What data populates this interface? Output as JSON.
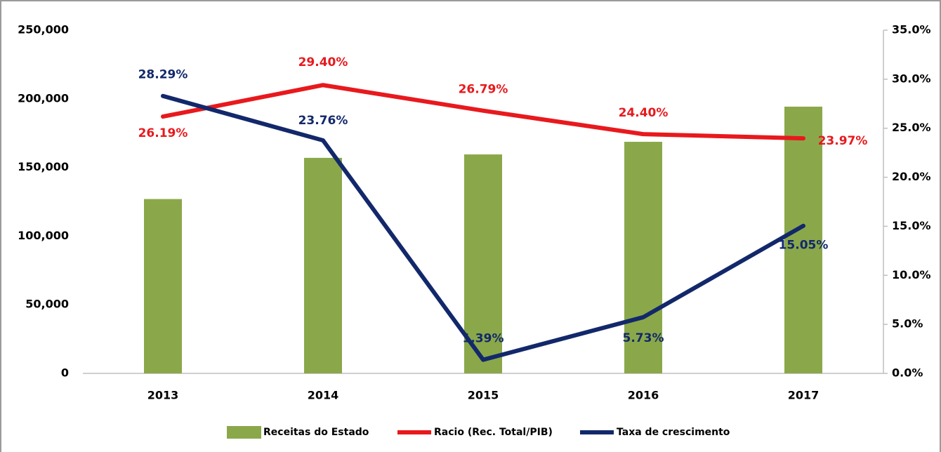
{
  "chart_data": {
    "type": "bar",
    "categories": [
      "2013",
      "2014",
      "2015",
      "2016",
      "2017"
    ],
    "series": [
      {
        "name": "Receitas do Estado",
        "type": "bar",
        "color": "#8aa84a",
        "axis": "y",
        "values": [
          127000,
          157000,
          159500,
          168700,
          194300
        ]
      },
      {
        "name": "Racio (Rec. Total/PIB)",
        "type": "line",
        "color": "#e8191d",
        "axis": "y2",
        "values": [
          26.19,
          29.4,
          26.79,
          24.4,
          23.97
        ],
        "value_labels": [
          "26.19%",
          "29.40%",
          "26.79%",
          "24.40%",
          "23.97%"
        ]
      },
      {
        "name": "Taxa de crescimento",
        "type": "line",
        "color": "#12286b",
        "axis": "y2",
        "values": [
          28.29,
          23.76,
          1.39,
          5.73,
          15.05
        ],
        "value_labels": [
          "28.29%",
          "23.76%",
          "1.39%",
          "5.73%",
          "15.05%"
        ]
      }
    ],
    "ylim": [
      0,
      250000
    ],
    "yticks": [
      0,
      {
        "value": 50000,
        "label": "50,000"
      },
      {
        "value": 100000,
        "label": "100,000"
      },
      {
        "value": 150000,
        "label": "150,000"
      },
      {
        "value": 200000,
        "label": "200,000"
      },
      {
        "value": 250000,
        "label": "250,000"
      }
    ],
    "y2lim": [
      0,
      35
    ],
    "y2ticks": [
      {
        "value": 0,
        "label": "0.0%"
      },
      {
        "value": 5,
        "label": "5.0%"
      },
      {
        "value": 10,
        "label": "10.0%"
      },
      {
        "value": 15,
        "label": "15.0%"
      },
      {
        "value": 20,
        "label": "20.0%"
      },
      {
        "value": 25,
        "label": "25.0%"
      },
      {
        "value": 30,
        "label": "30.0%"
      },
      {
        "value": 35,
        "label": "35.0%"
      }
    ],
    "legend": "bottom"
  }
}
